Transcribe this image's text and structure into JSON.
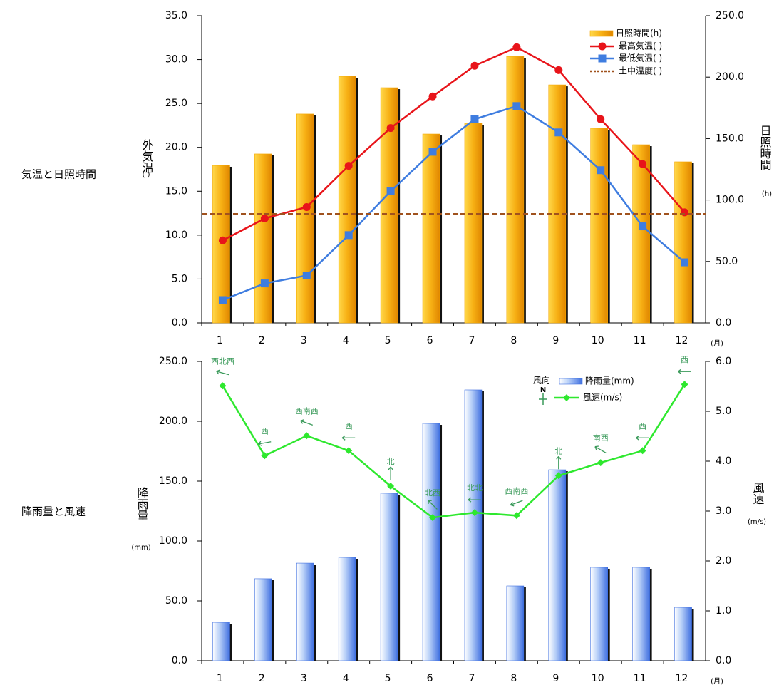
{
  "chart_data": [
    {
      "type": "combo",
      "title": "気温と日照時間",
      "categories": [
        "1",
        "2",
        "3",
        "4",
        "5",
        "6",
        "7",
        "8",
        "9",
        "10",
        "11",
        "12"
      ],
      "x_unit": "(月)",
      "y_label": "外気温",
      "y_unit": "(  )",
      "y2_label": "日照時間",
      "y2_unit": "(h)",
      "ylim": [
        0,
        35
      ],
      "yticks": [
        {
          "value": 0,
          "label": "0.0"
        },
        {
          "value": 5,
          "label": "5.0"
        },
        {
          "value": 10,
          "label": "10.0"
        },
        {
          "value": 15,
          "label": "15.0"
        },
        {
          "value": 20,
          "label": "20.0"
        },
        {
          "value": 25,
          "label": "25.0"
        },
        {
          "value": 30,
          "label": "30.0"
        },
        {
          "value": 35,
          "label": "35.0"
        }
      ],
      "y2lim": [
        0,
        250
      ],
      "y2ticks": [
        {
          "value": 0,
          "label": "0.0"
        },
        {
          "value": 50,
          "label": "50.0"
        },
        {
          "value": 100,
          "label": "100.0"
        },
        {
          "value": 150,
          "label": "150.0"
        },
        {
          "value": 200,
          "label": "200.0"
        },
        {
          "value": 250,
          "label": "250.0"
        }
      ],
      "legend": "upper right",
      "series": [
        {
          "name": "日照時間(h)",
          "type": "bar",
          "axis": "y2",
          "color": "#f5a800",
          "values": [
            128.2,
            137.5,
            170.0,
            200.7,
            191.4,
            153.7,
            162.4,
            216.9,
            193.7,
            158.4,
            145.0,
            131.1
          ]
        },
        {
          "name": "最高気温(  )",
          "type": "line",
          "marker": "circle",
          "color": "#e8141a",
          "values": [
            9.4,
            11.9,
            13.2,
            17.9,
            22.2,
            25.8,
            29.3,
            31.4,
            28.8,
            23.2,
            18.1,
            12.6
          ]
        },
        {
          "name": "最低気温(  )",
          "type": "line",
          "marker": "square",
          "color": "#3f7de0",
          "values": [
            2.6,
            4.5,
            5.4,
            10.0,
            15.0,
            19.5,
            23.2,
            24.7,
            21.7,
            17.4,
            11.0,
            6.9
          ]
        },
        {
          "name": "土中温度(  )",
          "type": "hline",
          "color": "#a0521e",
          "value": 12.4
        }
      ]
    },
    {
      "type": "combo",
      "title": "降雨量と風速",
      "categories": [
        "1",
        "2",
        "3",
        "4",
        "5",
        "6",
        "7",
        "8",
        "9",
        "10",
        "11",
        "12"
      ],
      "x_unit": "(月)",
      "y_label": "降雨量",
      "y_unit": "(mm)",
      "y2_label": "風速",
      "y2_unit": "(m/s)",
      "ylim": [
        0,
        250
      ],
      "yticks": [
        {
          "value": 0,
          "label": "0.0"
        },
        {
          "value": 50,
          "label": "50.0"
        },
        {
          "value": 100,
          "label": "100.0"
        },
        {
          "value": 150,
          "label": "150.0"
        },
        {
          "value": 200,
          "label": "200.0"
        },
        {
          "value": 250,
          "label": "250.0"
        }
      ],
      "y2lim": [
        0,
        6
      ],
      "y2ticks": [
        {
          "value": 0,
          "label": "0.0"
        },
        {
          "value": 1,
          "label": "1.0"
        },
        {
          "value": 2,
          "label": "2.0"
        },
        {
          "value": 3,
          "label": "3.0"
        },
        {
          "value": 4,
          "label": "4.0"
        },
        {
          "value": 5,
          "label": "5.0"
        },
        {
          "value": 6,
          "label": "6.0"
        }
      ],
      "legend": "upper right",
      "series": [
        {
          "name": "降雨量(mm)",
          "type": "bar",
          "axis": "y",
          "color": "#3f6fe0",
          "values": [
            32.1,
            68.5,
            81.5,
            86.3,
            139.9,
            198.2,
            226.2,
            62.5,
            159.5,
            78.0,
            78.0,
            44.6
          ]
        },
        {
          "name": "風速(m/s)",
          "type": "line",
          "marker": "diamond",
          "axis": "y2",
          "color": "#2ee82e",
          "values": [
            5.51,
            4.11,
            4.51,
            4.21,
            3.5,
            2.87,
            2.97,
            2.91,
            3.71,
            3.97,
            4.21,
            5.54
          ]
        }
      ],
      "wind_direction": {
        "name": "風向",
        "compass": "N",
        "labels": [
          "西北西",
          "西",
          "西南西",
          "西",
          "北",
          "北西",
          "北北",
          "西南西",
          "北",
          "南西",
          "西",
          "西"
        ]
      }
    }
  ]
}
